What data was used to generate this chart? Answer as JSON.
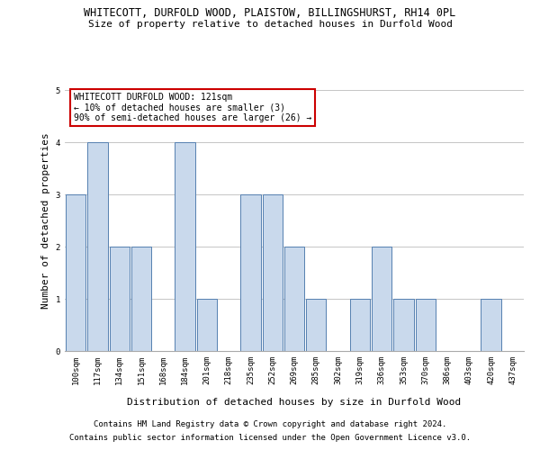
{
  "title": "WHITECOTT, DURFOLD WOOD, PLAISTOW, BILLINGSHURST, RH14 0PL",
  "subtitle": "Size of property relative to detached houses in Durfold Wood",
  "xlabel": "Distribution of detached houses by size in Durfold Wood",
  "ylabel": "Number of detached properties",
  "footer1": "Contains HM Land Registry data © Crown copyright and database right 2024.",
  "footer2": "Contains public sector information licensed under the Open Government Licence v3.0.",
  "categories": [
    "100sqm",
    "117sqm",
    "134sqm",
    "151sqm",
    "168sqm",
    "184sqm",
    "201sqm",
    "218sqm",
    "235sqm",
    "252sqm",
    "269sqm",
    "285sqm",
    "302sqm",
    "319sqm",
    "336sqm",
    "353sqm",
    "370sqm",
    "386sqm",
    "403sqm",
    "420sqm",
    "437sqm"
  ],
  "values": [
    3,
    4,
    2,
    2,
    0,
    4,
    1,
    0,
    3,
    3,
    2,
    1,
    0,
    1,
    2,
    1,
    1,
    0,
    0,
    1,
    0
  ],
  "bar_color": "#c9d9ec",
  "bar_edge_color": "#5580b0",
  "ylim": [
    0,
    5
  ],
  "yticks": [
    0,
    1,
    2,
    3,
    4,
    5
  ],
  "annotation_title": "WHITECOTT DURFOLD WOOD: 121sqm",
  "annotation_line2": "← 10% of detached houses are smaller (3)",
  "annotation_line3": "90% of semi-detached houses are larger (26) →",
  "annotation_box_color": "#ffffff",
  "annotation_box_edge_color": "#cc0000",
  "background_color": "#ffffff",
  "grid_color": "#bbbbbb",
  "title_fontsize": 8.5,
  "subtitle_fontsize": 8,
  "xlabel_fontsize": 8,
  "ylabel_fontsize": 8,
  "tick_fontsize": 6.5,
  "annotation_fontsize": 7,
  "footer_fontsize": 6.5
}
